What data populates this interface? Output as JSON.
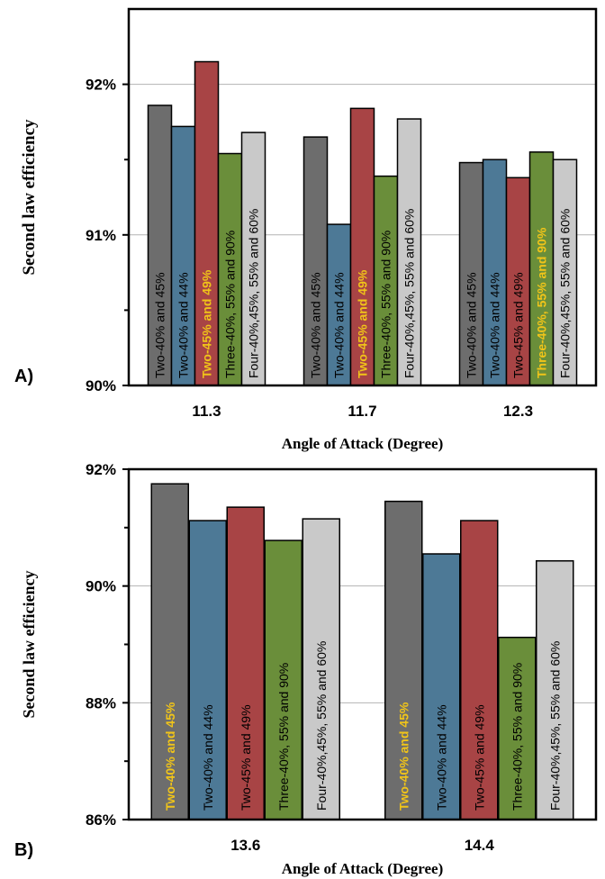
{
  "chart_data": [
    {
      "type": "bar",
      "panel_label": "A)",
      "categories": [
        "11.3",
        "11.7",
        "12.3"
      ],
      "xlabel": "Angle of Attack (Degree)",
      "ylabel": "Second law efficiency",
      "ylim": [
        90,
        92.5
      ],
      "yticks": [
        90,
        91,
        92
      ],
      "ytick_labels": [
        "90%",
        "91%",
        "92%"
      ],
      "grid": true,
      "series": [
        {
          "name": "Two-40% and 45%",
          "color": "#6d6d6d",
          "values": [
            91.86,
            91.65,
            91.48
          ],
          "labels": [
            "Two-40% and 45%",
            "Two-40% and 45%",
            "Two-40% and 45%"
          ],
          "label_colors": [
            "#000000",
            "#000000",
            "#000000"
          ]
        },
        {
          "name": "Two-40% and 44%",
          "color": "#4d7996",
          "values": [
            91.72,
            91.07,
            91.5
          ],
          "labels": [
            "Two-40% and 44%",
            "Two-40% and 44%",
            "Two-40% and 44%"
          ],
          "label_colors": [
            "#000000",
            "#000000",
            "#000000"
          ]
        },
        {
          "name": "Two-45% and 49%",
          "color": "#a84445",
          "values": [
            92.15,
            91.84,
            91.38
          ],
          "labels": [
            "Two-45% and 49%",
            "Two-45% and 49%",
            "Two-45% and 49%"
          ],
          "label_colors": [
            "#f0c419",
            "#f0c419",
            "#000000"
          ]
        },
        {
          "name": "Three-40%, 55% and 90%",
          "color": "#6a8e3a",
          "values": [
            91.54,
            91.39,
            91.55
          ],
          "labels": [
            "Three-40%, 55% and 90%",
            "Three-40%, 55% and 90%",
            "Three-40%, 55% and 90%"
          ],
          "label_colors": [
            "#000000",
            "#000000",
            "#f0c419"
          ]
        },
        {
          "name": "Four-40%,45%, 55% and 60%",
          "color": "#c9c9c9",
          "values": [
            91.68,
            91.77,
            91.5
          ],
          "labels": [
            "Four-40%,45%,  55% and 60%",
            "Four-40%,45%,  55% and 60%",
            "Four-40%,45%,  55% and 60%"
          ],
          "label_colors": [
            "#000000",
            "#000000",
            "#000000"
          ]
        }
      ]
    },
    {
      "type": "bar",
      "panel_label": "B)",
      "categories": [
        "13.6",
        "14.4"
      ],
      "xlabel": "Angle of Attack (Degree)",
      "ylabel": "Second law efficiency",
      "ylim": [
        86,
        92
      ],
      "yticks": [
        86,
        88,
        90,
        92
      ],
      "ytick_labels": [
        "86%",
        "88%",
        "90%",
        "92%"
      ],
      "grid": true,
      "series": [
        {
          "name": "Two-40% and 45%",
          "color": "#6d6d6d",
          "values": [
            91.75,
            91.45
          ],
          "labels": [
            "Two-40% and 45%",
            "Two-40% and 45%"
          ],
          "label_colors": [
            "#f0c419",
            "#f0c419"
          ]
        },
        {
          "name": "Two-40% and 44%",
          "color": "#4d7996",
          "values": [
            91.12,
            90.55
          ],
          "labels": [
            "Two-40% and 44%",
            "Two-40% and 44%"
          ],
          "label_colors": [
            "#000000",
            "#000000"
          ]
        },
        {
          "name": "Two-45% and 49%",
          "color": "#a84445",
          "values": [
            91.35,
            91.12
          ],
          "labels": [
            "Two-45% and 49%",
            "Two-45% and 49%"
          ],
          "label_colors": [
            "#000000",
            "#000000"
          ]
        },
        {
          "name": "Three-40%, 55% and 90%",
          "color": "#6a8e3a",
          "values": [
            90.78,
            89.12
          ],
          "labels": [
            "Three-40%, 55% and 90%",
            "Three-40%, 55% and 90%"
          ],
          "label_colors": [
            "#000000",
            "#000000"
          ]
        },
        {
          "name": "Four-40%,45%, 55% and 60%",
          "color": "#c9c9c9",
          "values": [
            91.15,
            90.43
          ],
          "labels": [
            "Four-40%,45%,  55% and 60%",
            "Four-40%,45%,  55% and 60%"
          ],
          "label_colors": [
            "#000000",
            "#000000"
          ]
        }
      ]
    }
  ]
}
